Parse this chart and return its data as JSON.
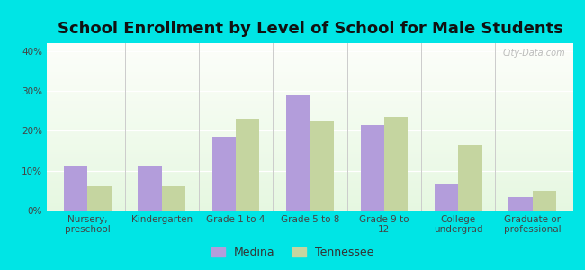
{
  "title": "School Enrollment by Level of School for Male Students",
  "categories": [
    "Nursery,\npreschool",
    "Kindergarten",
    "Grade 1 to 4",
    "Grade 5 to 8",
    "Grade 9 to\n12",
    "College\nundergrad",
    "Graduate or\nprofessional"
  ],
  "medina_values": [
    11.0,
    11.0,
    18.5,
    29.0,
    21.5,
    6.5,
    3.5
  ],
  "tennessee_values": [
    6.0,
    6.0,
    23.0,
    22.5,
    23.5,
    16.5,
    5.0
  ],
  "medina_color": "#b39ddb",
  "tennessee_color": "#c5d5a0",
  "bar_width": 0.32,
  "ylim": [
    0,
    42
  ],
  "yticks": [
    0,
    10,
    20,
    30,
    40
  ],
  "ytick_labels": [
    "0%",
    "10%",
    "20%",
    "30%",
    "40%"
  ],
  "background_color": "#00e5e5",
  "title_fontsize": 13,
  "tick_fontsize": 7.5,
  "legend_labels": [
    "Medina",
    "Tennessee"
  ],
  "watermark": "City-Data.com"
}
